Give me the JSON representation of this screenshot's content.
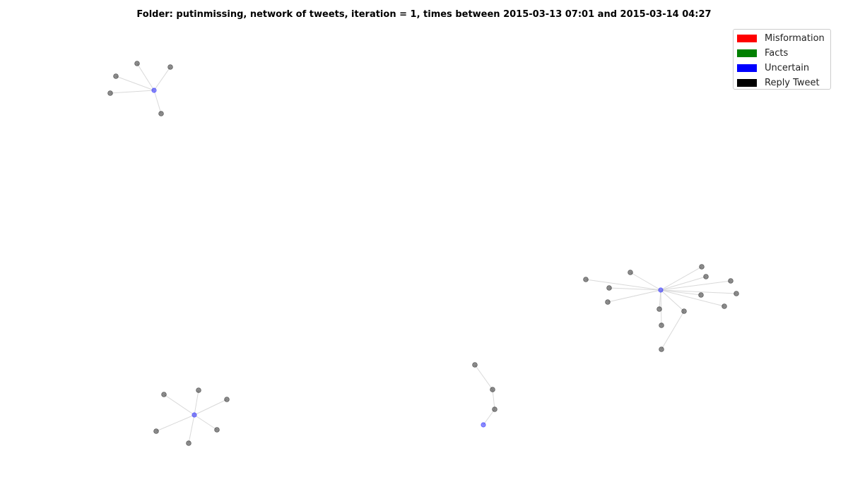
{
  "title": "Folder: putinmissing, network of tweets, iteration = 1, times between 2015-03-13 07:01 and 2015-03-14 04:27",
  "legend": {
    "items": [
      {
        "label": "Misformation",
        "color": "#ff0000"
      },
      {
        "label": "Facts",
        "color": "#008000"
      },
      {
        "label": "Uncertain",
        "color": "#0000ff"
      },
      {
        "label": "Reply Tweet",
        "color": "#000000"
      }
    ]
  },
  "node_colors": {
    "uncertain": "#0000ff",
    "reply": "#000000"
  },
  "clusters": [
    {
      "root": "uncertain",
      "replies": 5
    },
    {
      "root": "uncertain",
      "replies": 15
    },
    {
      "root": "uncertain",
      "replies": 6
    },
    {
      "root": "uncertain",
      "replies": 3,
      "chain": true
    }
  ]
}
